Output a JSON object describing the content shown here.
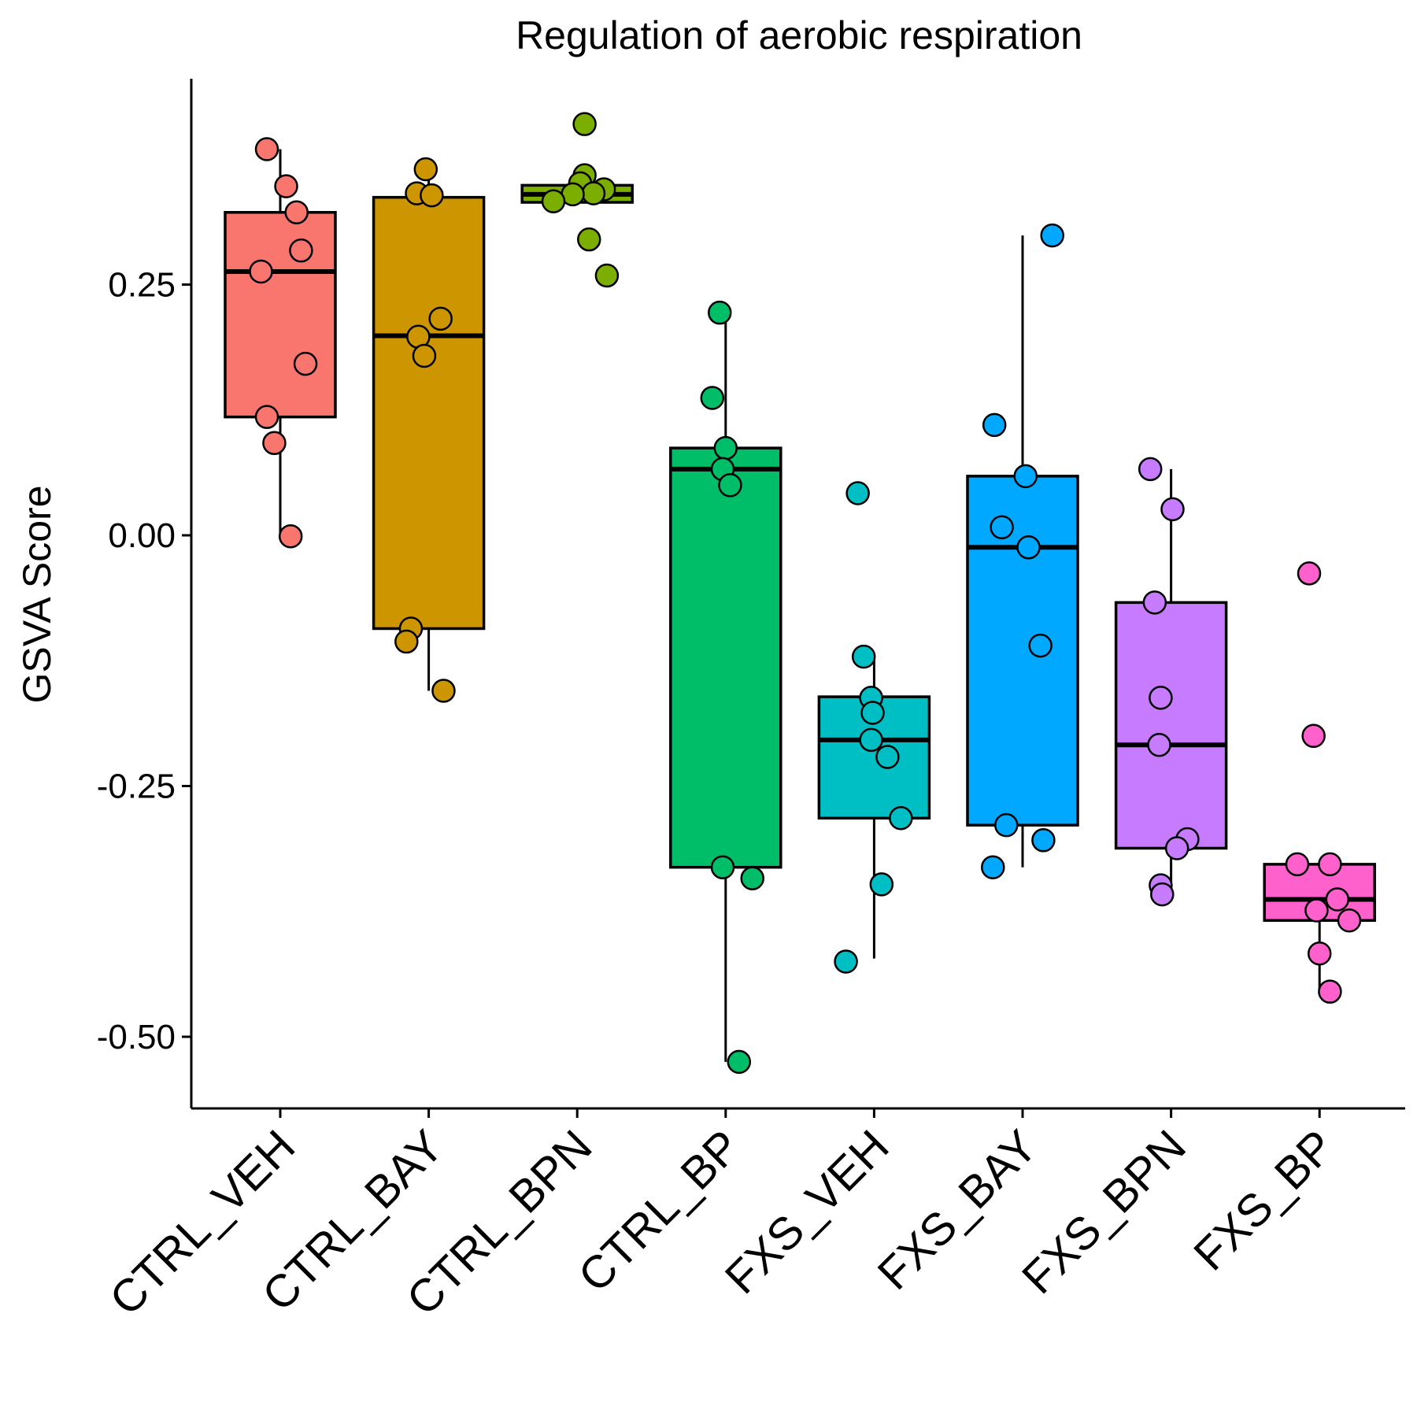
{
  "chart_data": {
    "type": "boxplot",
    "title": "Regulation of aerobic respiration",
    "xlabel": "",
    "ylabel": "GSVA Score",
    "ylim": [
      -0.575,
      0.435
    ],
    "yticks": [
      0.25,
      0.0,
      -0.25,
      -0.5
    ],
    "ytick_labels": [
      "0.25",
      "0.00",
      "-0.25",
      "-0.50"
    ],
    "grid": false,
    "legend": "none",
    "categories": [
      "CTRL_VEH",
      "CTRL_BAY",
      "CTRL_BPN",
      "CTRL_BP",
      "FXS_VEH",
      "FXS_BAY",
      "FXS_BPN",
      "FXS_BP"
    ],
    "colors": [
      "#F8766D",
      "#CD9600",
      "#7CAE00",
      "#00BE67",
      "#00BFC4",
      "#00A9FF",
      "#C77CFF",
      "#FF61CC"
    ],
    "groups": [
      {
        "name": "CTRL_VEH",
        "box": {
          "lower_whisker": 0.0,
          "q1": 0.118,
          "median": 0.263,
          "q3": 0.322,
          "upper_whisker": 0.385
        },
        "points": [
          {
            "x": -0.09,
            "y": 0.385
          },
          {
            "x": 0.04,
            "y": 0.348
          },
          {
            "x": 0.11,
            "y": 0.322
          },
          {
            "x": 0.14,
            "y": 0.284
          },
          {
            "x": -0.13,
            "y": 0.263
          },
          {
            "x": 0.17,
            "y": 0.171
          },
          {
            "x": -0.09,
            "y": 0.118
          },
          {
            "x": -0.04,
            "y": 0.092
          },
          {
            "x": 0.07,
            "y": -0.001
          }
        ]
      },
      {
        "name": "CTRL_BAY",
        "box": {
          "lower_whisker": -0.155,
          "q1": -0.093,
          "median": 0.199,
          "q3": 0.337,
          "upper_whisker": 0.365
        },
        "points": [
          {
            "x": -0.02,
            "y": 0.365
          },
          {
            "x": -0.08,
            "y": 0.341
          },
          {
            "x": 0.02,
            "y": 0.339
          },
          {
            "x": 0.08,
            "y": 0.216
          },
          {
            "x": -0.07,
            "y": 0.198
          },
          {
            "x": -0.03,
            "y": 0.179
          },
          {
            "x": -0.12,
            "y": -0.093
          },
          {
            "x": -0.15,
            "y": -0.106
          },
          {
            "x": 0.1,
            "y": -0.155
          }
        ]
      },
      {
        "name": "CTRL_BPN",
        "box": {
          "lower_whisker": 0.332,
          "q1": 0.332,
          "median": 0.34,
          "q3": 0.349,
          "upper_whisker": 0.349
        },
        "points": [
          {
            "x": 0.05,
            "y": 0.41
          },
          {
            "x": 0.05,
            "y": 0.359
          },
          {
            "x": 0.02,
            "y": 0.351
          },
          {
            "x": 0.18,
            "y": 0.345
          },
          {
            "x": 0.11,
            "y": 0.341
          },
          {
            "x": -0.03,
            "y": 0.34
          },
          {
            "x": -0.16,
            "y": 0.333
          },
          {
            "x": 0.08,
            "y": 0.295
          },
          {
            "x": 0.2,
            "y": 0.259
          }
        ]
      },
      {
        "name": "CTRL_BP",
        "box": {
          "lower_whisker": -0.525,
          "q1": -0.331,
          "median": 0.066,
          "q3": 0.087,
          "upper_whisker": 0.222
        },
        "points": [
          {
            "x": -0.04,
            "y": 0.222
          },
          {
            "x": -0.09,
            "y": 0.137
          },
          {
            "x": 0.0,
            "y": 0.087
          },
          {
            "x": -0.02,
            "y": 0.066
          },
          {
            "x": 0.03,
            "y": 0.05
          },
          {
            "x": -0.02,
            "y": -0.331
          },
          {
            "x": 0.18,
            "y": -0.342
          },
          {
            "x": 0.09,
            "y": -0.525
          }
        ]
      },
      {
        "name": "FXS_VEH",
        "box": {
          "lower_whisker": -0.422,
          "q1": -0.282,
          "median": -0.204,
          "q3": -0.161,
          "upper_whisker": -0.121
        },
        "points": [
          {
            "x": -0.11,
            "y": 0.042
          },
          {
            "x": -0.07,
            "y": -0.121
          },
          {
            "x": -0.02,
            "y": -0.162
          },
          {
            "x": -0.01,
            "y": -0.177
          },
          {
            "x": -0.02,
            "y": -0.204
          },
          {
            "x": 0.09,
            "y": -0.221
          },
          {
            "x": 0.18,
            "y": -0.282
          },
          {
            "x": 0.05,
            "y": -0.348
          },
          {
            "x": -0.19,
            "y": -0.425
          }
        ]
      },
      {
        "name": "FXS_BAY",
        "box": {
          "lower_whisker": -0.331,
          "q1": -0.289,
          "median": -0.012,
          "q3": 0.059,
          "upper_whisker": 0.299
        },
        "points": [
          {
            "x": 0.2,
            "y": 0.299
          },
          {
            "x": -0.19,
            "y": 0.11
          },
          {
            "x": 0.02,
            "y": 0.059
          },
          {
            "x": -0.14,
            "y": 0.008
          },
          {
            "x": 0.04,
            "y": -0.012
          },
          {
            "x": 0.12,
            "y": -0.11
          },
          {
            "x": -0.11,
            "y": -0.289
          },
          {
            "x": 0.14,
            "y": -0.304
          },
          {
            "x": -0.2,
            "y": -0.331
          }
        ]
      },
      {
        "name": "FXS_BPN",
        "box": {
          "lower_whisker": -0.349,
          "q1": -0.312,
          "median": -0.209,
          "q3": -0.067,
          "upper_whisker": 0.066
        },
        "points": [
          {
            "x": -0.14,
            "y": 0.066
          },
          {
            "x": 0.01,
            "y": 0.026
          },
          {
            "x": -0.11,
            "y": -0.067
          },
          {
            "x": -0.07,
            "y": -0.162
          },
          {
            "x": -0.08,
            "y": -0.209
          },
          {
            "x": 0.11,
            "y": -0.303
          },
          {
            "x": 0.04,
            "y": -0.312
          },
          {
            "x": -0.07,
            "y": -0.349
          },
          {
            "x": -0.06,
            "y": -0.358
          }
        ]
      },
      {
        "name": "FXS_BP",
        "box": {
          "lower_whisker": -0.455,
          "q1": -0.384,
          "median": -0.363,
          "q3": -0.328,
          "upper_whisker": -0.328
        },
        "points": [
          {
            "x": -0.07,
            "y": -0.038
          },
          {
            "x": -0.04,
            "y": -0.2
          },
          {
            "x": -0.15,
            "y": -0.328
          },
          {
            "x": 0.07,
            "y": -0.328
          },
          {
            "x": 0.12,
            "y": -0.363
          },
          {
            "x": -0.02,
            "y": -0.374
          },
          {
            "x": 0.2,
            "y": -0.384
          },
          {
            "x": 0.0,
            "y": -0.417
          },
          {
            "x": 0.07,
            "y": -0.455
          }
        ]
      }
    ]
  }
}
